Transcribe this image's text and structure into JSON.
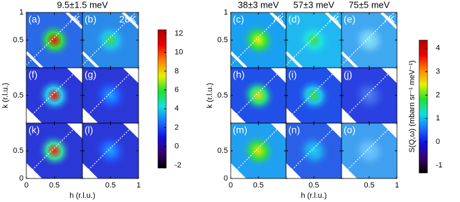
{
  "chart_data": [
    {
      "type": "heatmap",
      "title": "9.5±1.5 meV",
      "panels": [
        {
          "label": "(a)",
          "temperature": "7K"
        },
        {
          "label": "(b)",
          "temperature": "28K"
        },
        {
          "label": "(f)"
        },
        {
          "label": "(g)"
        },
        {
          "label": "(k)"
        },
        {
          "label": "(l)"
        }
      ],
      "xlabel": "h (r.l.u.)",
      "ylabel": "k (r.l.u.)",
      "xlim": [
        0,
        1
      ],
      "xticks": [
        0,
        0.5,
        1
      ],
      "ylim": [
        0,
        1
      ],
      "yticks": [
        0,
        0.5,
        1
      ],
      "colorbar": {
        "lim": [
          -2.3,
          12.4
        ],
        "ticks": [
          -2,
          0,
          2,
          4,
          6,
          8,
          10,
          12
        ],
        "colormap": [
          "#000000",
          "#3a0070",
          "#1010e0",
          "#1a70ff",
          "#10e0e0",
          "#20e030",
          "#e8f000",
          "#ff8000",
          "#ee0000",
          "#b00000"
        ]
      }
    },
    {
      "type": "heatmap",
      "column_titles": [
        "38±3 meV",
        "57±3 meV",
        "75±5 meV"
      ],
      "panels": [
        {
          "label": "(c)",
          "temperature": "7K"
        },
        {
          "label": "(d)",
          "temperature": "7K"
        },
        {
          "label": "(e)",
          "temperature": "7K"
        },
        {
          "label": "(h)"
        },
        {
          "label": "(i)"
        },
        {
          "label": "(j)"
        },
        {
          "label": "(m)"
        },
        {
          "label": "(n)"
        },
        {
          "label": "(o)"
        }
      ],
      "xlabel": "h (r.l.u.)",
      "ylabel": "k (r.l.u.)",
      "xlim": [
        0,
        1
      ],
      "xticks": [
        0,
        0.5,
        1
      ],
      "ylim": [
        0,
        1
      ],
      "yticks": [
        0,
        0.5,
        1
      ],
      "colorbar": {
        "lim": [
          -1.33,
          4.35
        ],
        "ticks": [
          -1,
          0,
          1,
          2,
          3,
          4
        ],
        "label": "S(Q,ω) (mbarn sr⁻¹ meV⁻¹)",
        "colormap": [
          "#000000",
          "#3a0070",
          "#1010e0",
          "#1a70ff",
          "#10e0e0",
          "#20e030",
          "#e8f000",
          "#ff8000",
          "#ee0000",
          "#b00000"
        ]
      }
    }
  ]
}
